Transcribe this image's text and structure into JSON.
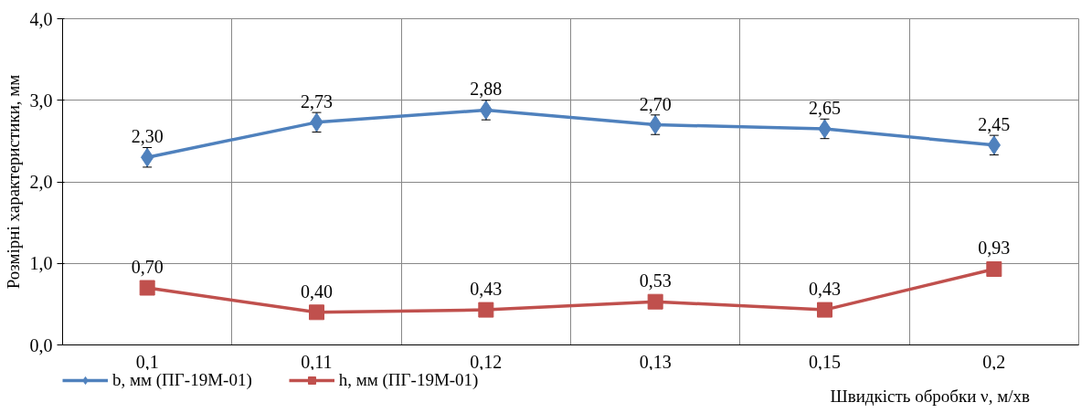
{
  "chart_data": {
    "type": "line",
    "xlabel": "Швидкість обробки ν, м/хв",
    "ylabel": "Розмірні характеристики, мм",
    "categories": [
      "0,1",
      "0,11",
      "0,12",
      "0,13",
      "0,15",
      "0,2"
    ],
    "series": [
      {
        "name": "b, мм (ПГ-19М-01)",
        "color": "#4f81bd",
        "marker": "diamond",
        "values": [
          2.3,
          2.73,
          2.88,
          2.7,
          2.65,
          2.45
        ],
        "value_labels": [
          "2,30",
          "2,73",
          "2,88",
          "2,70",
          "2,65",
          "2,45"
        ],
        "errors": [
          0.12,
          0.12,
          0.12,
          0.12,
          0.12,
          0.12
        ]
      },
      {
        "name": "h, мм (ПГ-19М-01)",
        "color": "#c0504d",
        "marker": "square",
        "values": [
          0.7,
          0.4,
          0.43,
          0.53,
          0.43,
          0.93
        ],
        "value_labels": [
          "0,70",
          "0,40",
          "0,43",
          "0,53",
          "0,43",
          "0,93"
        ]
      }
    ],
    "ylim": [
      0,
      4
    ],
    "yticks": [
      {
        "value": 0,
        "label": "0,0"
      },
      {
        "value": 1,
        "label": "1,0"
      },
      {
        "value": 2,
        "label": "2,0"
      },
      {
        "value": 3,
        "label": "3,0"
      },
      {
        "value": 4,
        "label": "4,0"
      }
    ],
    "grid": true,
    "legend": "bottom left",
    "line_style": "solid"
  }
}
